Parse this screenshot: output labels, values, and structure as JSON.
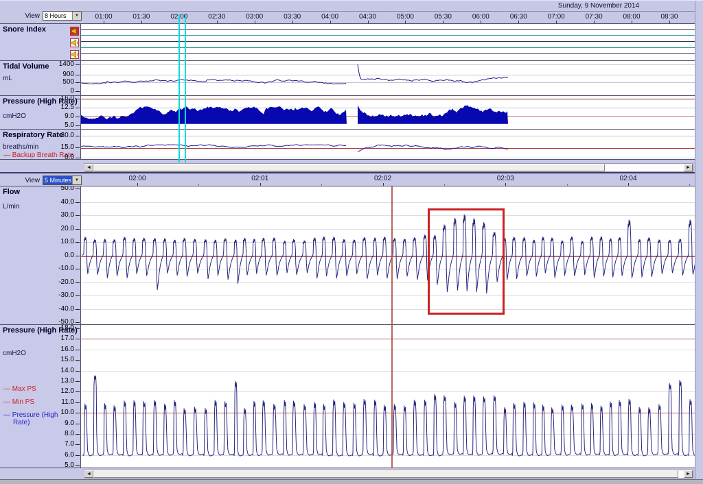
{
  "window": {
    "date_header": "Sunday, 9 November 2014"
  },
  "icons": {
    "snore_audio": "speaker-icon",
    "combo_arrow": "chevron-down-icon",
    "scroll_left": "arrow-left-icon",
    "scroll_right": "arrow-right-icon"
  },
  "top_section": {
    "view_label": "View",
    "view_value": "8 Hours",
    "time_labels": [
      "01:00",
      "01:30",
      "02:00",
      "02:30",
      "03:00",
      "03:30",
      "04:00",
      "04:30",
      "05:00",
      "05:30",
      "06:00",
      "06:30",
      "07:00",
      "07:30",
      "08:00",
      "08:30"
    ],
    "channels": [
      {
        "name": "Snore Index",
        "unit": "",
        "ticks": []
      },
      {
        "name": "Tidal Volume",
        "unit": "mL",
        "ticks": [
          "1400",
          "900",
          "500",
          "0"
        ]
      },
      {
        "name": "Pressure (High Rate)",
        "unit": "cmH2O",
        "ticks": [
          "16.0",
          "12.5",
          "9.0",
          "5.0"
        ]
      },
      {
        "name": "Respiratory Rate",
        "unit": "breaths/min",
        "ticks": [
          "30.0",
          "15.0",
          "0.0"
        ],
        "legend": [
          {
            "label": "Backup Breath Rate",
            "color": "#cc2222"
          }
        ]
      }
    ]
  },
  "bottom_section": {
    "view_label": "View",
    "view_value": "5 Minutes",
    "time_labels": [
      "02:00",
      "02:01",
      "02:02",
      "02:03",
      "02:04"
    ],
    "channels": [
      {
        "name": "Flow",
        "unit": "L/min",
        "ticks": [
          "50.0",
          "40.0",
          "30.0",
          "20.0",
          "10.0",
          "0.0",
          "-10.0",
          "-20.0",
          "-30.0",
          "-40.0",
          "-50.0"
        ]
      },
      {
        "name": "Pressure (High Rate)",
        "unit": "cmH2O",
        "ticks": [
          "18.0",
          "17.0",
          "16.0",
          "15.0",
          "14.0",
          "13.0",
          "12.0",
          "11.0",
          "10.0",
          "9.0",
          "8.0",
          "7.0",
          "6.0",
          "5.0"
        ],
        "legend": [
          {
            "label": "Max PS",
            "color": "#cc2222"
          },
          {
            "label": "Min PS",
            "color": "#cc2222"
          },
          {
            "label": "Pressure (High Rate)",
            "color": "#2424c8"
          }
        ]
      }
    ]
  },
  "chart_data": [
    {
      "panel": "snore-index-8h",
      "type": "line",
      "note": "three flat audio-marker baselines with alternating teal reference lines, no snore events",
      "colors": {
        "baseline": "#32325f",
        "secondary": "#2f9a8f"
      }
    },
    {
      "panel": "tidal-volume-8h",
      "type": "line",
      "ylabel": "mL",
      "yticks": [
        1400,
        900,
        500,
        0
      ],
      "baseline_mL": 500,
      "range_mL": [
        430,
        780
      ],
      "resume_spike_mL": 1400,
      "data_start": "01:00",
      "data_end": "06:35",
      "gap": [
        "04:05",
        "04:20"
      ],
      "color": "#1a1a90"
    },
    {
      "panel": "pressure-high-rate-8h",
      "type": "area",
      "ylabel": "cmH2O",
      "yticks": [
        16.0,
        12.5,
        9.0,
        5.0
      ],
      "band_cmH2O": [
        5.6,
        12.8
      ],
      "reference_lines": [
        {
          "value": 16.0,
          "color": "#992222"
        },
        {
          "value": 9.0,
          "color": "#cc7777"
        }
      ],
      "gap": [
        "04:05",
        "04:20"
      ],
      "color": "#0808b0"
    },
    {
      "panel": "respiratory-rate-8h",
      "type": "line",
      "ylabel": "breaths/min",
      "yticks": [
        30,
        15,
        0
      ],
      "baseline_breaths_min": 15,
      "range": [
        11,
        18
      ],
      "reference_lines": [
        {
          "value": 15,
          "color": "#b04040",
          "label": "Backup Breath Rate"
        }
      ],
      "gap": [
        "04:05",
        "04:20"
      ],
      "color": "#1a1a90"
    },
    {
      "panel": "flow-5min",
      "type": "line",
      "ylabel": "L/min",
      "ylim": [
        -50,
        50
      ],
      "breath_period_s": 4.7,
      "typical_insp_peak": 12,
      "typical_exp_trough": -16,
      "event": {
        "start": "02:02:22",
        "end": "02:03:00",
        "max_peak": 32,
        "min_trough": -33,
        "annotation": "red rectangle"
      },
      "cursor_time": "02:02:04",
      "zero_line": 0,
      "color": "#26267e"
    },
    {
      "panel": "pressure-high-rate-5min",
      "type": "line",
      "ylabel": "cmH2O",
      "ylim": [
        5,
        18
      ],
      "baseline_cmH2O": 6.0,
      "breath_peak_cmH2O": 11.0,
      "reference_lines": [
        {
          "value": 17.0,
          "label": "Max PS",
          "color": "#c06060"
        },
        {
          "value": 10.0,
          "label": "Min PS",
          "color": "#c06060"
        }
      ],
      "color": "#26267e"
    }
  ],
  "view_window_markers": {
    "color": "#00ddd8",
    "window": [
      "02:00",
      "02:05"
    ]
  }
}
